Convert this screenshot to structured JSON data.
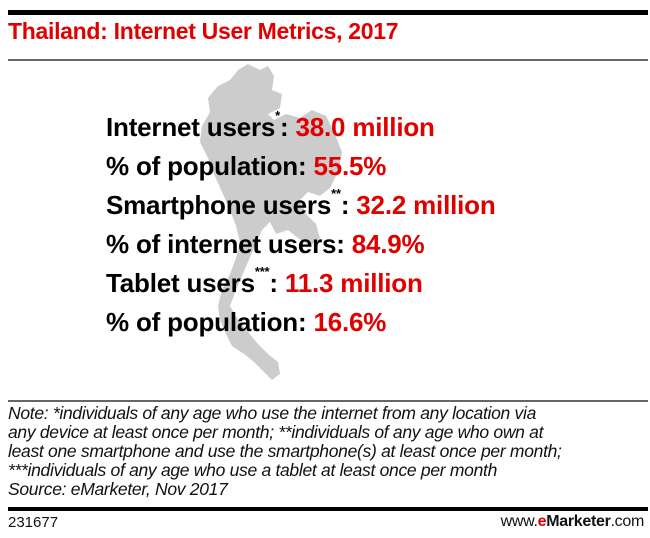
{
  "title": "Thailand: Internet User Metrics, 2017",
  "stats": [
    {
      "label": "Internet users",
      "sup": "*",
      "value": "38.0 million"
    },
    {
      "label": "% of population",
      "sup": "",
      "value": "55.5%"
    },
    {
      "label": "Smartphone users",
      "sup": "**",
      "value": "32.2 million"
    },
    {
      "label": "% of internet users",
      "sup": "",
      "value": "84.9%"
    },
    {
      "label": "Tablet users",
      "sup": "***",
      "value": "11.3 million"
    },
    {
      "label": "% of population",
      "sup": "",
      "value": "16.6%"
    }
  ],
  "note": [
    "Note: *individuals of any age who use the internet from any location via",
    "any device at least once per month; **individuals of any age who own at",
    "least one smartphone and use the smartphone(s) at least once per month;",
    "***individuals of any age who use a tablet at least once per month",
    "Source: eMarketer, Nov 2017"
  ],
  "footer": {
    "id": "231677",
    "brand_prefix": "www.",
    "brand_e": "e",
    "brand_main": "Marketer",
    "brand_suffix": ".com"
  },
  "colors": {
    "accent": "#e00000",
    "map": "#cccccc"
  }
}
